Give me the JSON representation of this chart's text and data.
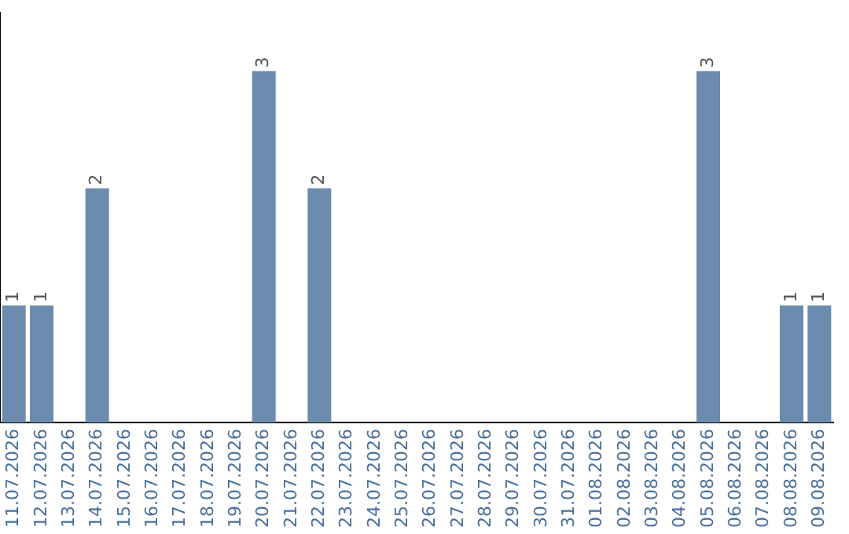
{
  "chart_data": {
    "type": "bar",
    "categories": [
      "11.07.2026",
      "12.07.2026",
      "13.07.2026",
      "14.07.2026",
      "15.07.2026",
      "16.07.2026",
      "17.07.2026",
      "18.07.2026",
      "19.07.2026",
      "20.07.2026",
      "21.07.2026",
      "22.07.2026",
      "23.07.2026",
      "24.07.2026",
      "25.07.2026",
      "26.07.2026",
      "27.07.2026",
      "28.07.2026",
      "29.07.2026",
      "30.07.2026",
      "31.07.2026",
      "01.08.2026",
      "02.08.2026",
      "03.08.2026",
      "04.08.2026",
      "05.08.2026",
      "06.08.2026",
      "07.08.2026",
      "08.08.2026",
      "09.08.2026"
    ],
    "values": [
      1,
      1,
      null,
      2,
      null,
      null,
      null,
      null,
      null,
      3,
      null,
      2,
      null,
      null,
      null,
      null,
      null,
      null,
      null,
      null,
      null,
      null,
      null,
      null,
      null,
      3,
      null,
      null,
      1,
      1
    ],
    "color": "#6b8cae",
    "data_labels": true,
    "grid": false,
    "legend": false,
    "tick_labels": "x"
  }
}
